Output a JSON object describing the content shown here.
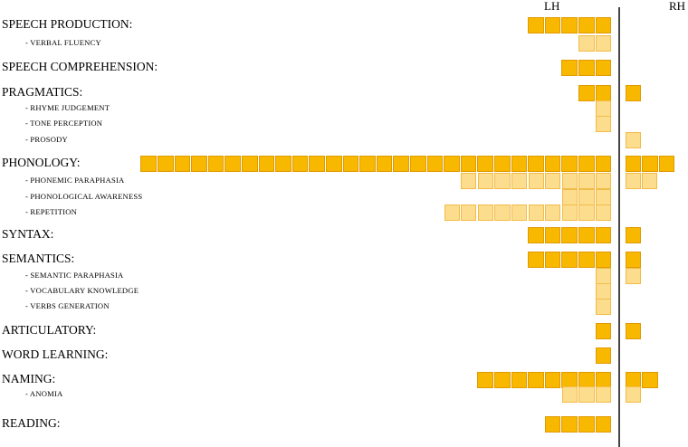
{
  "chart_data": {
    "type": "grid-bar-diagram",
    "headers": {
      "left": "LH",
      "right": "RH"
    },
    "colors": {
      "main": "#F9B800",
      "main_border": "#E09A00",
      "sub": "#FCDD8E",
      "sub_border": "#F2BB47"
    },
    "rows": [
      {
        "label": "SPEECH PRODUCTION:",
        "kind": "main",
        "lh": 5,
        "rh": 0
      },
      {
        "label": "- VERBAL FLUENCY",
        "kind": "sub",
        "lh": 2,
        "rh": 0
      },
      {
        "label": "SPEECH COMPREHENSION:",
        "kind": "main",
        "lh": 3,
        "rh": 0
      },
      {
        "label": "PRAGMATICS:",
        "kind": "main",
        "lh": 2,
        "rh": 1
      },
      {
        "label": "- RHYME JUDGEMENT",
        "kind": "sub",
        "lh": 1,
        "rh": 0
      },
      {
        "label": "- TONE PERCEPTION",
        "kind": "sub",
        "lh": 1,
        "rh": 0
      },
      {
        "label": "- PROSODY",
        "kind": "sub",
        "lh": 0,
        "rh": 1
      },
      {
        "label": "PHONOLOGY:",
        "kind": "main",
        "lh": 28,
        "rh": 3
      },
      {
        "label": "- PHONEMIC PARAPHASIA",
        "kind": "sub",
        "lh": 9,
        "rh": 2
      },
      {
        "label": "- PHONOLOGICAL AWARENESS",
        "kind": "sub",
        "lh": 3,
        "rh": 0
      },
      {
        "label": "- REPETITION",
        "kind": "sub",
        "lh": 10,
        "rh": 0
      },
      {
        "label": "SYNTAX:",
        "kind": "main",
        "lh": 5,
        "rh": 1
      },
      {
        "label": "SEMANTICS:",
        "kind": "main",
        "lh": 5,
        "rh": 1
      },
      {
        "label": "- SEMANTIC PARAPHASIA",
        "kind": "sub",
        "lh": 1,
        "rh": 1
      },
      {
        "label": "- VOCABULARY KNOWLEDGE",
        "kind": "sub",
        "lh": 1,
        "rh": 0
      },
      {
        "label": "- VERBS GENERATION",
        "kind": "sub",
        "lh": 1,
        "rh": 0
      },
      {
        "label": "ARTICULATORY:",
        "kind": "main",
        "lh": 1,
        "rh": 1
      },
      {
        "label": "WORD LEARNING:",
        "kind": "main",
        "lh": 1,
        "rh": 0
      },
      {
        "label": "NAMING:",
        "kind": "main",
        "lh": 8,
        "rh": 2
      },
      {
        "label": "- ANOMIA",
        "kind": "sub",
        "lh": 3,
        "rh": 1
      },
      {
        "label": "READING:",
        "kind": "main",
        "lh": 4,
        "rh": 0
      }
    ]
  }
}
